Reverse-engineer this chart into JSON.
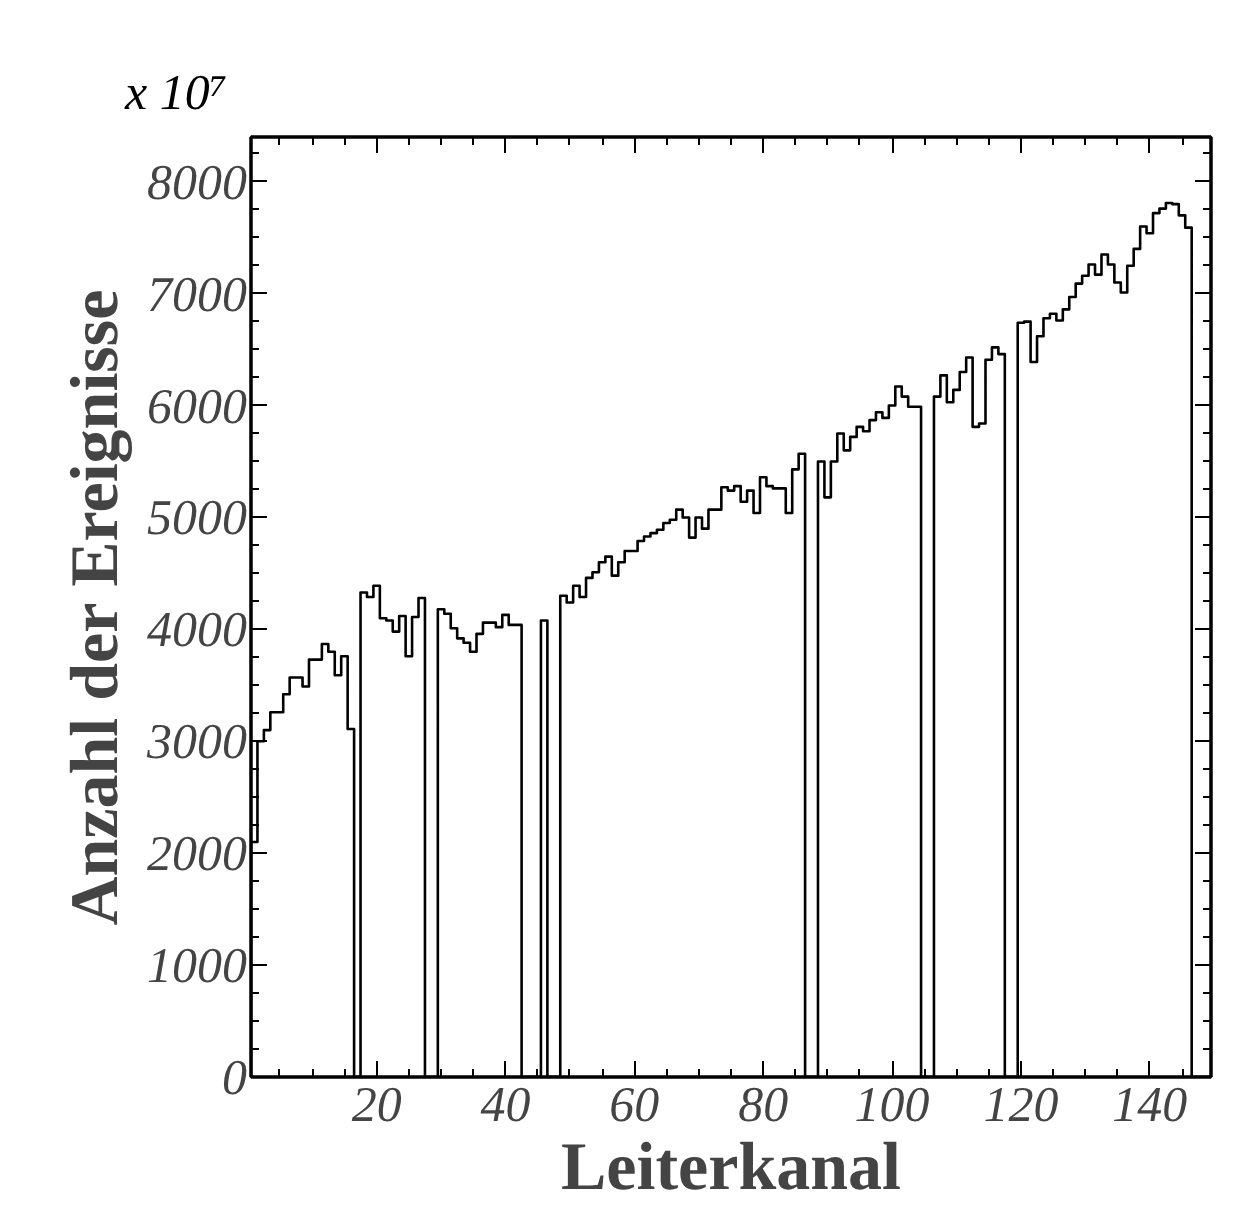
{
  "chart_data": {
    "type": "histogram",
    "xlabel": "Leiterkanal",
    "ylabel": "Anzahl der Ereignisse",
    "annotations": [
      "x 10⁷"
    ],
    "bins": [
      0.5,
      1.5,
      2.5,
      3.5,
      4.5,
      5.5,
      6.5,
      7.5,
      8.5,
      9.5,
      10.5,
      11.5,
      12.5,
      13.5,
      14.5,
      15.5,
      16.5,
      17.5,
      18.5,
      19.5,
      20.5,
      21.5,
      22.5,
      23.5,
      24.5,
      25.5,
      26.5,
      27.5,
      28.5,
      29.5,
      30.5,
      31.5,
      32.5,
      33.5,
      34.5,
      35.5,
      36.5,
      37.5,
      38.5,
      39.5,
      40.5,
      41.5,
      42.5,
      43.5,
      44.5,
      45.5,
      46.5,
      47.5,
      48.5,
      49.5,
      50.5,
      51.5,
      52.5,
      53.5,
      54.5,
      55.5,
      56.5,
      57.5,
      58.5,
      59.5,
      60.5,
      61.5,
      62.5,
      63.5,
      64.5,
      65.5,
      66.5,
      67.5,
      68.5,
      69.5,
      70.5,
      71.5,
      72.5,
      73.5,
      74.5,
      75.5,
      76.5,
      77.5,
      78.5,
      79.5,
      80.5,
      81.5,
      82.5,
      83.5,
      84.5,
      85.5,
      86.5,
      87.5,
      88.5,
      89.5,
      90.5,
      91.5,
      92.5,
      93.5,
      94.5,
      95.5,
      96.5,
      97.5,
      98.5,
      99.5,
      100.5,
      101.5,
      102.5,
      103.5,
      104.5,
      105.5,
      106.5,
      107.5,
      108.5,
      109.5,
      110.5,
      111.5,
      112.5,
      113.5,
      114.5,
      115.5,
      116.5,
      117.5,
      118.5,
      119.5,
      120.5,
      121.5,
      122.5,
      123.5,
      124.5,
      125.5,
      126.5,
      127.5,
      128.5,
      129.5,
      130.5,
      131.5,
      132.5,
      133.5,
      134.5,
      135.5,
      136.5,
      137.5,
      138.5,
      139.5,
      140.5,
      141.5,
      142.5,
      143.5,
      144.5,
      145.5,
      146.5,
      147.5,
      148.5,
      149.5
    ],
    "values": [
      2100,
      3000,
      3100,
      3260,
      3260,
      3420,
      3570,
      3570,
      3490,
      3730,
      3730,
      3870,
      3800,
      3590,
      3760,
      3110,
      0,
      4330,
      4290,
      4390,
      4100,
      4080,
      3980,
      4120,
      3760,
      4110,
      4280,
      0,
      0,
      4180,
      4140,
      4010,
      3920,
      3880,
      3800,
      3960,
      4060,
      4060,
      4020,
      4130,
      4040,
      4040,
      0,
      0,
      0,
      4080,
      0,
      0,
      4300,
      4240,
      4390,
      4290,
      4460,
      4510,
      4600,
      4650,
      4480,
      4600,
      4700,
      4700,
      4790,
      4830,
      4860,
      4890,
      4950,
      4980,
      5070,
      5000,
      4820,
      5000,
      4900,
      5070,
      5070,
      5270,
      5240,
      5280,
      5140,
      5240,
      5040,
      5360,
      5280,
      5260,
      5260,
      5040,
      5430,
      5570,
      0,
      0,
      5500,
      5180,
      5500,
      5750,
      5600,
      5720,
      5810,
      5770,
      5870,
      5940,
      5890,
      6000,
      6170,
      6080,
      5990,
      5990,
      0,
      0,
      6080,
      6270,
      6030,
      6140,
      6300,
      6430,
      5810,
      5840,
      6410,
      6520,
      6460,
      0,
      0,
      6740,
      6750,
      6390,
      6620,
      6780,
      6820,
      6760,
      6860,
      6970,
      7090,
      7160,
      7260,
      7170,
      7350,
      7260,
      7100,
      7010,
      7250,
      7400,
      7600,
      7540,
      7720,
      7760,
      7810,
      7800,
      7700,
      7590,
      0,
      0,
      0
    ],
    "color": "#000000",
    "xlim": [
      0.5,
      149.5
    ],
    "xticks": [
      20,
      40,
      60,
      80,
      100,
      120,
      140
    ],
    "ylim": [
      0,
      8400
    ],
    "yticks": [
      0,
      1000,
      2000,
      3000,
      4000,
      5000,
      6000,
      7000,
      8000
    ]
  }
}
